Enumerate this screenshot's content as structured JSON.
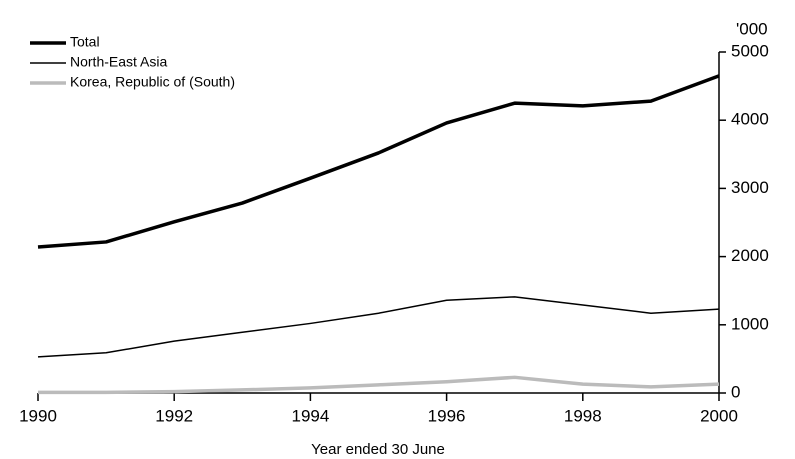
{
  "chart_data": {
    "type": "line",
    "x_label": "Year ended 30 June",
    "y_unit": "'000",
    "x": [
      1990,
      1991,
      1992,
      1993,
      1994,
      1995,
      1996,
      1997,
      1998,
      1999,
      2000
    ],
    "series": [
      {
        "name": "Total",
        "color": "#000000",
        "values": [
          2140,
          2215,
          2510,
          2785,
          3150,
          3520,
          3960,
          4250,
          4210,
          4280,
          4650
        ]
      },
      {
        "name": "North-East Asia",
        "color": "#000000",
        "values": [
          530,
          590,
          760,
          890,
          1020,
          1170,
          1360,
          1410,
          1290,
          1170,
          1230
        ]
      },
      {
        "name": "Korea, Republic of (South)",
        "color": "#bbbbbb",
        "values": [
          10,
          10,
          20,
          45,
          75,
          120,
          165,
          230,
          130,
          90,
          130
        ]
      }
    ],
    "xlim": [
      1990,
      2000
    ],
    "xticks": [
      1990,
      1992,
      1994,
      1996,
      1998,
      2000
    ],
    "ylim": [
      0,
      5000
    ],
    "yticks": [
      0,
      1000,
      2000,
      3000,
      4000,
      5000
    ],
    "legend": "top-left"
  }
}
